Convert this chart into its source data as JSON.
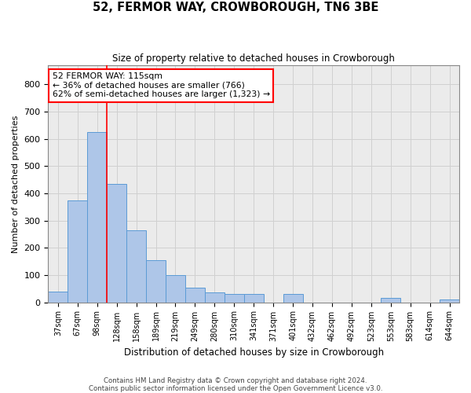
{
  "title": "52, FERMOR WAY, CROWBOROUGH, TN6 3BE",
  "subtitle": "Size of property relative to detached houses in Crowborough",
  "xlabel": "Distribution of detached houses by size in Crowborough",
  "ylabel": "Number of detached properties",
  "categories": [
    "37sqm",
    "67sqm",
    "98sqm",
    "128sqm",
    "158sqm",
    "189sqm",
    "219sqm",
    "249sqm",
    "280sqm",
    "310sqm",
    "341sqm",
    "371sqm",
    "401sqm",
    "432sqm",
    "462sqm",
    "492sqm",
    "523sqm",
    "553sqm",
    "583sqm",
    "614sqm",
    "644sqm"
  ],
  "values": [
    40,
    375,
    625,
    435,
    265,
    155,
    100,
    55,
    35,
    30,
    30,
    0,
    30,
    0,
    0,
    0,
    0,
    15,
    0,
    0,
    10
  ],
  "bar_color": "#aec6e8",
  "bar_edge_color": "#5b9bd5",
  "red_line_x": 2.5,
  "annotation_box_text": "52 FERMOR WAY: 115sqm\n← 36% of detached houses are smaller (766)\n62% of semi-detached houses are larger (1,323) →",
  "ylim": [
    0,
    870
  ],
  "yticks": [
    0,
    100,
    200,
    300,
    400,
    500,
    600,
    700,
    800
  ],
  "footer_line1": "Contains HM Land Registry data © Crown copyright and database right 2024.",
  "footer_line2": "Contains public sector information licensed under the Open Government Licence v3.0.",
  "grid_color": "#d0d0d0",
  "background_color": "#ebebeb"
}
